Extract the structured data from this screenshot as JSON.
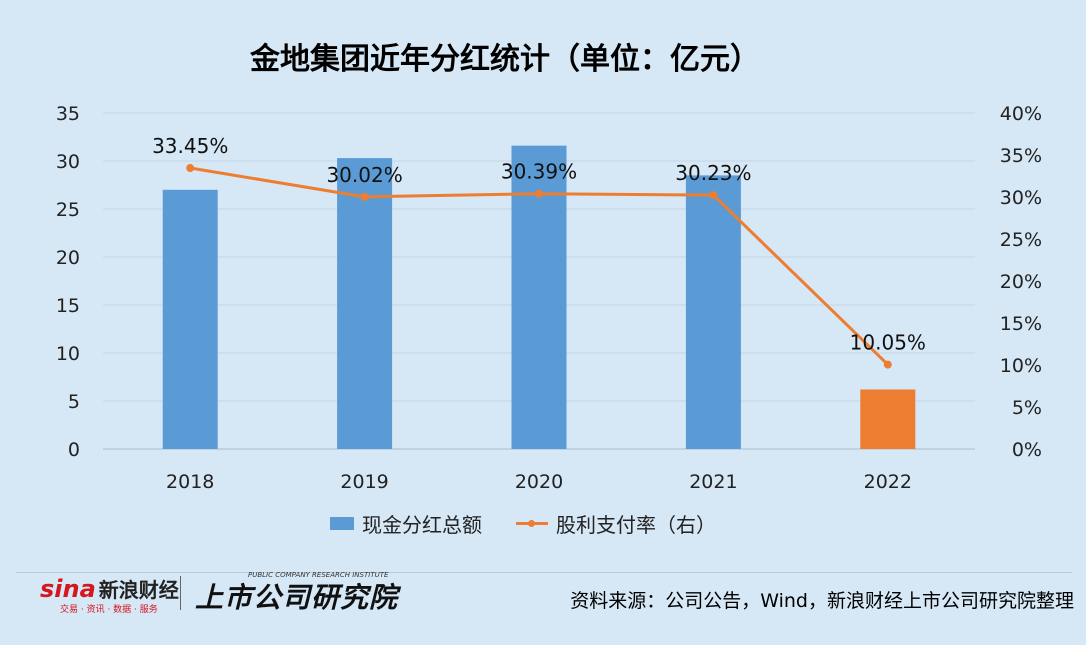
{
  "title": "金地集团近年分红统计（单位：亿元）",
  "source": "资料来源：公司公告，Wind，新浪财经上市公司研究院整理",
  "logos": {
    "sina_word": "sina",
    "sina_cn": "新浪财经",
    "sina_sub": "交易 · 资讯 · 数据 · 服务",
    "institute": "上市公司研究院",
    "institute_en": "PUBLIC COMPANY RESEARCH INSTITUTE"
  },
  "colors": {
    "bar": "#5b9bd5",
    "bar_highlight": "#ed7d31",
    "line": "#ed7d31",
    "background": "#d6e7f5",
    "grid": "#c4d6e6"
  },
  "chart_data": {
    "type": "bar",
    "categories": [
      "2018",
      "2019",
      "2020",
      "2021",
      "2022"
    ],
    "series": [
      {
        "name": "现金分红总额",
        "type": "bar",
        "axis": "left",
        "values": [
          27.0,
          30.3,
          31.6,
          28.5,
          6.2
        ],
        "highlight_index": 4
      },
      {
        "name": "股利支付率（右）",
        "type": "line",
        "axis": "right",
        "values": [
          33.45,
          30.02,
          30.39,
          30.23,
          10.05
        ],
        "labels": [
          "33.45%",
          "30.02%",
          "30.39%",
          "30.23%",
          "10.05%"
        ]
      }
    ],
    "y_left": {
      "min": 0,
      "max": 35,
      "ticks": [
        "0",
        "5",
        "10",
        "15",
        "20",
        "25",
        "30",
        "35"
      ]
    },
    "y_right": {
      "min": 0,
      "max": 40,
      "ticks": [
        "0%",
        "5%",
        "10%",
        "15%",
        "20%",
        "25%",
        "30%",
        "35%",
        "40%"
      ]
    },
    "grid": true,
    "legend_position": "bottom"
  }
}
